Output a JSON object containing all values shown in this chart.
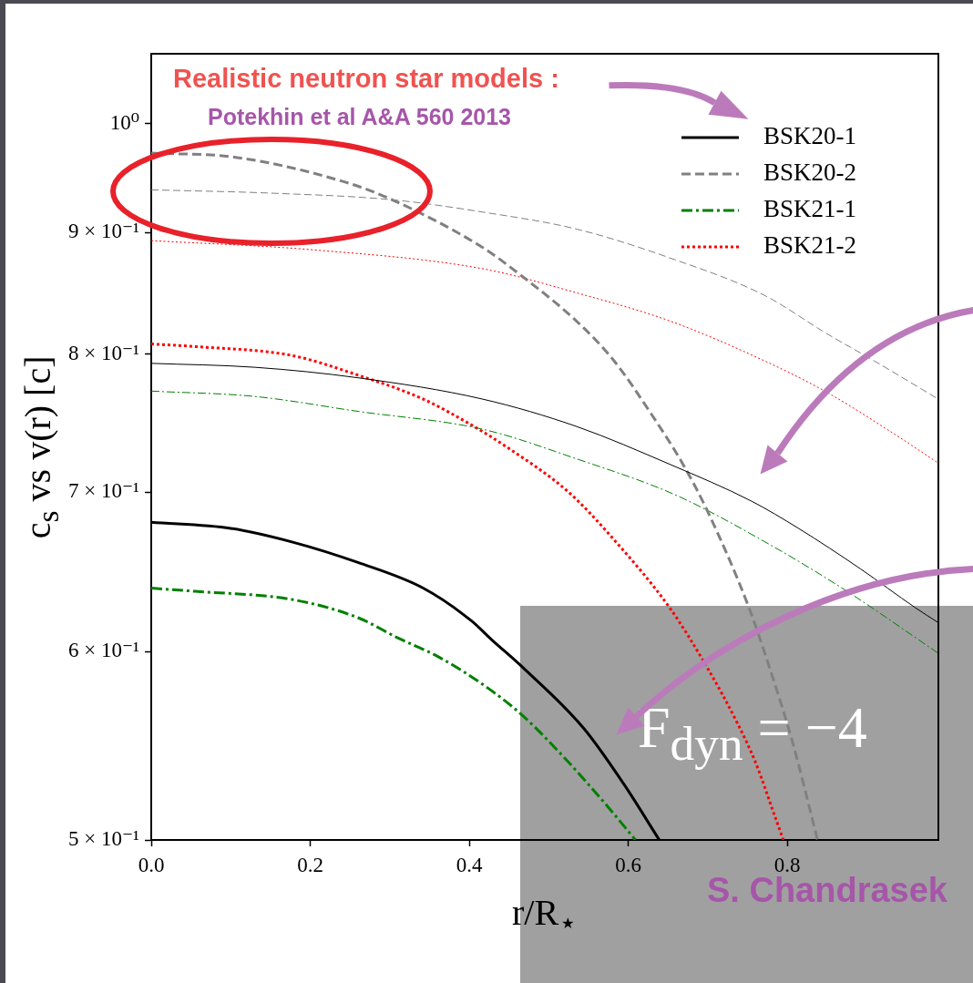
{
  "chart_data": {
    "type": "line",
    "xlabel": "r/R$_{⋆}$",
    "ylabel": "c$_{s}$ vs v(r) [c]",
    "annotations": [
      "Realistic neutron star models :",
      "Potekhin et al A&A 560 2013",
      "F$_{dyn}$ = −4",
      "S. Chandrasek"
    ],
    "xlim": [
      0,
      0.99
    ],
    "ylim": [
      0.5,
      1.07
    ],
    "xticks": [
      {
        "value": 0,
        "label": "0.0"
      },
      0.2,
      0.4,
      0.6,
      0.8
    ],
    "yticks": [
      {
        "value": 0.5,
        "label": "5 × 10⁻¹"
      },
      {
        "value": 0.6,
        "label": "6 × 10⁻¹"
      },
      {
        "value": 0.7,
        "label": "7 × 10⁻¹"
      },
      {
        "value": 0.8,
        "label": "8 × 10⁻¹"
      },
      {
        "value": 0.9,
        "label": "9 × 10⁻¹"
      },
      {
        "value": 1,
        "label": "10⁰"
      }
    ],
    "log": "y",
    "legend": "top right",
    "marker": "none",
    "series": [
      {
        "name": "BSK20-1",
        "color": "#000000",
        "line_style": "solid",
        "x": [
          0,
          0.1,
          0.178,
          0.26,
          0.342,
          0.403,
          0.428,
          0.467,
          0.544,
          0.594,
          0.639
        ],
        "values": [
          0.68,
          0.676,
          0.667,
          0.654,
          0.638,
          0.618,
          0.607,
          0.591,
          0.557,
          0.528,
          0.5
        ]
      },
      {
        "color": "#000000",
        "line_style": "solid",
        "x": [
          0,
          0.13,
          0.26,
          0.417,
          0.535,
          0.653,
          0.755,
          0.814,
          0.892,
          0.961,
          0.99
        ],
        "values": [
          0.793,
          0.79,
          0.782,
          0.766,
          0.746,
          0.719,
          0.694,
          0.676,
          0.65,
          0.626,
          0.617
        ]
      },
      {
        "name": "BSK20-2",
        "color": "#808080",
        "line_style": "dashed",
        "x": [
          0,
          0.106,
          0.244,
          0.303,
          0.417,
          0.464,
          0.535,
          0.582,
          0.629,
          0.669,
          0.699,
          0.751,
          0.776,
          0.807,
          0.838
        ],
        "values": [
          0.972,
          0.968,
          0.945,
          0.929,
          0.887,
          0.864,
          0.826,
          0.795,
          0.755,
          0.719,
          0.688,
          0.627,
          0.593,
          0.549,
          0.5
        ]
      },
      {
        "color": "#808080",
        "line_style": "dashed",
        "x": [
          0,
          0.15,
          0.303,
          0.417,
          0.535,
          0.653,
          0.771,
          0.85,
          0.909,
          0.99
        ],
        "values": [
          0.938,
          0.935,
          0.929,
          0.918,
          0.903,
          0.878,
          0.847,
          0.816,
          0.795,
          0.766
        ]
      },
      {
        "name": "BSK21-1",
        "color": "#008000",
        "line_style": "dashdot",
        "x": [
          0,
          0.055,
          0.177,
          0.26,
          0.31,
          0.361,
          0.424,
          0.467,
          0.525,
          0.575,
          0.609
        ],
        "values": [
          0.638,
          0.636,
          0.631,
          0.62,
          0.608,
          0.597,
          0.579,
          0.564,
          0.539,
          0.516,
          0.5
        ]
      },
      {
        "color": "#008000",
        "line_style": "dashdot",
        "x": [
          0,
          0.13,
          0.26,
          0.417,
          0.535,
          0.66,
          0.776,
          0.872,
          0.99
        ],
        "values": [
          0.772,
          0.768,
          0.757,
          0.744,
          0.723,
          0.698,
          0.666,
          0.637,
          0.599
        ]
      },
      {
        "name": "BSK21-2",
        "color": "#ff0000",
        "line_style": "dotted",
        "x": [
          0,
          0.055,
          0.177,
          0.26,
          0.342,
          0.403,
          0.448,
          0.525,
          0.583,
          0.652,
          0.699,
          0.737,
          0.76,
          0.784,
          0.795
        ],
        "values": [
          0.808,
          0.806,
          0.799,
          0.784,
          0.766,
          0.747,
          0.731,
          0.7,
          0.668,
          0.626,
          0.591,
          0.56,
          0.539,
          0.512,
          0.5
        ]
      },
      {
        "color": "#ff0000",
        "line_style": "dotted",
        "x": [
          0,
          0.205,
          0.417,
          0.535,
          0.653,
          0.771,
          0.85,
          0.928,
          0.99
        ],
        "values": [
          0.893,
          0.885,
          0.869,
          0.849,
          0.826,
          0.795,
          0.771,
          0.743,
          0.72
        ]
      }
    ]
  }
}
